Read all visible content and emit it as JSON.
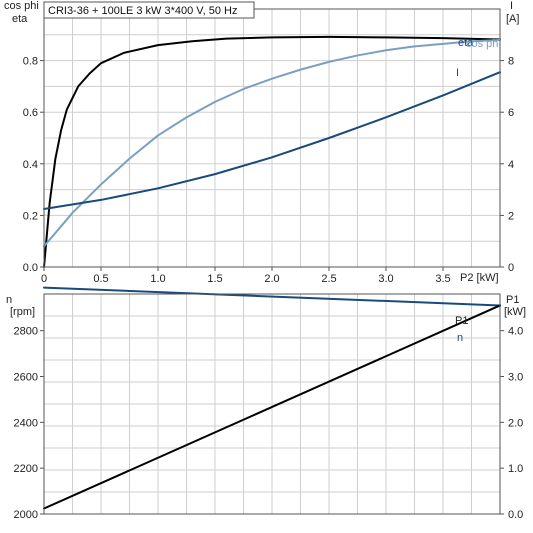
{
  "title": "CRI3-36 + 100LE   3 kW   3*400 V, 50 Hz",
  "chart_data": [
    {
      "type": "line",
      "panel": "top",
      "xlabel": "P2 [kW]",
      "ylabel_left": [
        "cos phi",
        "eta"
      ],
      "ylabel_right": [
        "I",
        "[A]"
      ],
      "xlim": [
        0,
        4.0
      ],
      "ylim_left": [
        0,
        1.0
      ],
      "ylim_right": [
        0,
        10
      ],
      "xticks": [
        0,
        0.5,
        1.0,
        1.5,
        2.0,
        2.5,
        3.0,
        3.5
      ],
      "xtick_labels": [
        "0",
        "0.5",
        "1.0",
        "1.5",
        "2.0",
        "2.5",
        "3.0",
        "3.5"
      ],
      "yticks_left": [
        0.0,
        0.2,
        0.4,
        0.6,
        0.8
      ],
      "ytick_labels_left": [
        "0.0",
        "0.2",
        "0.4",
        "0.6",
        "0.8"
      ],
      "yticks_right": [
        0,
        2,
        4,
        6,
        8
      ],
      "ytick_labels_right": [
        "0",
        "2",
        "4",
        "6",
        "8"
      ],
      "grid": true,
      "series": [
        {
          "name": "eta",
          "axis": "left",
          "color": "#000000",
          "x": [
            0,
            0.05,
            0.1,
            0.15,
            0.2,
            0.3,
            0.4,
            0.5,
            0.7,
            1.0,
            1.3,
            1.6,
            2.0,
            2.5,
            3.0,
            3.5,
            4.0
          ],
          "y": [
            0.0,
            0.25,
            0.42,
            0.53,
            0.61,
            0.7,
            0.75,
            0.79,
            0.83,
            0.86,
            0.875,
            0.885,
            0.89,
            0.892,
            0.89,
            0.887,
            0.882
          ]
        },
        {
          "name": "cos phi",
          "axis": "left",
          "color": "#7a9fc0",
          "x": [
            0,
            0.25,
            0.5,
            0.75,
            1.0,
            1.25,
            1.5,
            1.75,
            2.0,
            2.25,
            2.5,
            2.75,
            3.0,
            3.25,
            3.5,
            3.75,
            4.0
          ],
          "y": [
            0.08,
            0.21,
            0.32,
            0.42,
            0.51,
            0.58,
            0.64,
            0.69,
            0.73,
            0.765,
            0.795,
            0.82,
            0.84,
            0.855,
            0.865,
            0.875,
            0.88
          ]
        },
        {
          "name": "I",
          "axis": "right",
          "color": "#1a4a7a",
          "x": [
            0,
            0.5,
            1.0,
            1.5,
            2.0,
            2.5,
            3.0,
            3.5,
            4.0
          ],
          "y": [
            2.25,
            2.6,
            3.05,
            3.6,
            4.25,
            5.0,
            5.8,
            6.65,
            7.55
          ]
        }
      ]
    },
    {
      "type": "line",
      "panel": "bottom",
      "ylabel_left": [
        "n",
        "[rpm]"
      ],
      "ylabel_right": [
        "P1",
        "[kW]"
      ],
      "xlim": [
        0,
        4.0
      ],
      "ylim_left": [
        2000,
        2960
      ],
      "ylim_right": [
        0,
        4.8
      ],
      "yticks_left": [
        2000,
        2200,
        2400,
        2600,
        2800
      ],
      "ytick_labels_left": [
        "2000",
        "2200",
        "2400",
        "2600",
        "2800"
      ],
      "yticks_right": [
        0,
        1,
        2,
        3,
        4
      ],
      "ytick_labels_right": [
        "0.0",
        "1.0",
        "2.0",
        "3.0",
        "4.0"
      ],
      "grid": true,
      "series": [
        {
          "name": "n",
          "axis": "left",
          "color": "#1a4a7a",
          "x": [
            0,
            4.0
          ],
          "y": [
            2988,
            2910
          ]
        },
        {
          "name": "P1",
          "axis": "right",
          "color": "#000000",
          "x": [
            0,
            4.0
          ],
          "y": [
            0.12,
            4.55
          ]
        }
      ]
    }
  ],
  "labels": {
    "eta": "eta",
    "cosphi": "cos phi",
    "I": "I",
    "P1": "P1",
    "n": "n"
  }
}
